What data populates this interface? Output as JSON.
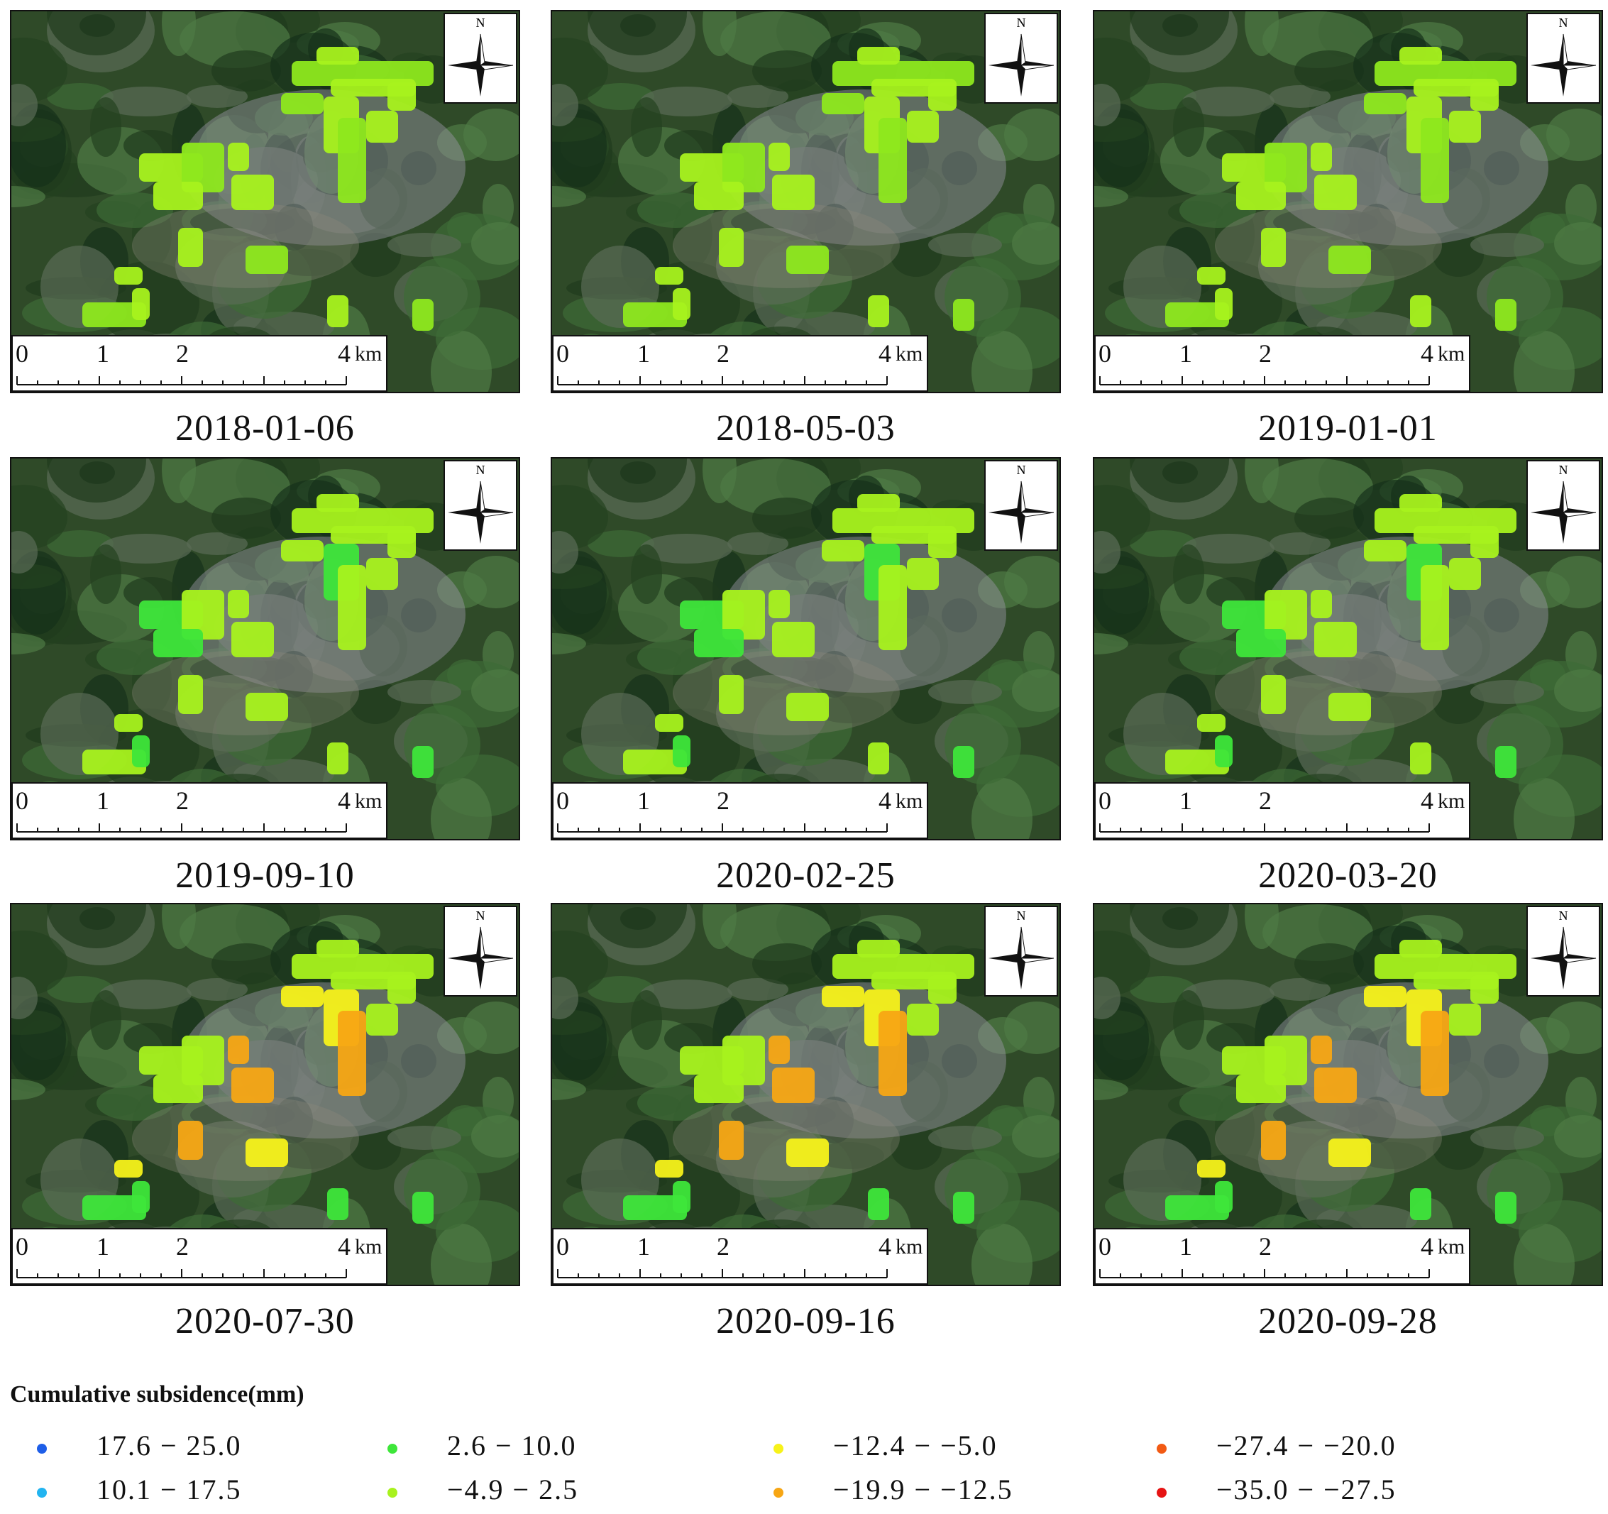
{
  "panels": [
    {
      "date": "2018-01-06",
      "stage": 0
    },
    {
      "date": "2018-05-03",
      "stage": 1
    },
    {
      "date": "2019-01-01",
      "stage": 2
    },
    {
      "date": "2019-09-10",
      "stage": 3
    },
    {
      "date": "2020-02-25",
      "stage": 4
    },
    {
      "date": "2020-03-20",
      "stage": 5
    },
    {
      "date": "2020-07-30",
      "stage": 6
    },
    {
      "date": "2020-09-16",
      "stage": 7
    },
    {
      "date": "2020-09-28",
      "stage": 8
    }
  ],
  "compass": {
    "north_label": "N"
  },
  "scale_bar": {
    "ticks": [
      "0",
      "1",
      "2",
      "4"
    ],
    "unit": "km"
  },
  "legend": {
    "title": "Cumulative subsidence(mm)",
    "items": [
      {
        "label": "17.6 − 25.0",
        "color": "#1e5ee8"
      },
      {
        "label": "10.1 − 17.5",
        "color": "#22b4f0"
      },
      {
        "label": "2.6 − 10.0",
        "color": "#3ee63a"
      },
      {
        "label": "−4.9 − 2.5",
        "color": "#a8f21e"
      },
      {
        "label": "−12.4 − −5.0",
        "color": "#f7f21a"
      },
      {
        "label": "−19.9 − −12.5",
        "color": "#f7a614"
      },
      {
        "label": "−27.4 − −20.0",
        "color": "#f25a14"
      },
      {
        "label": "−35.0 − −27.5",
        "color": "#e61414"
      }
    ]
  }
}
